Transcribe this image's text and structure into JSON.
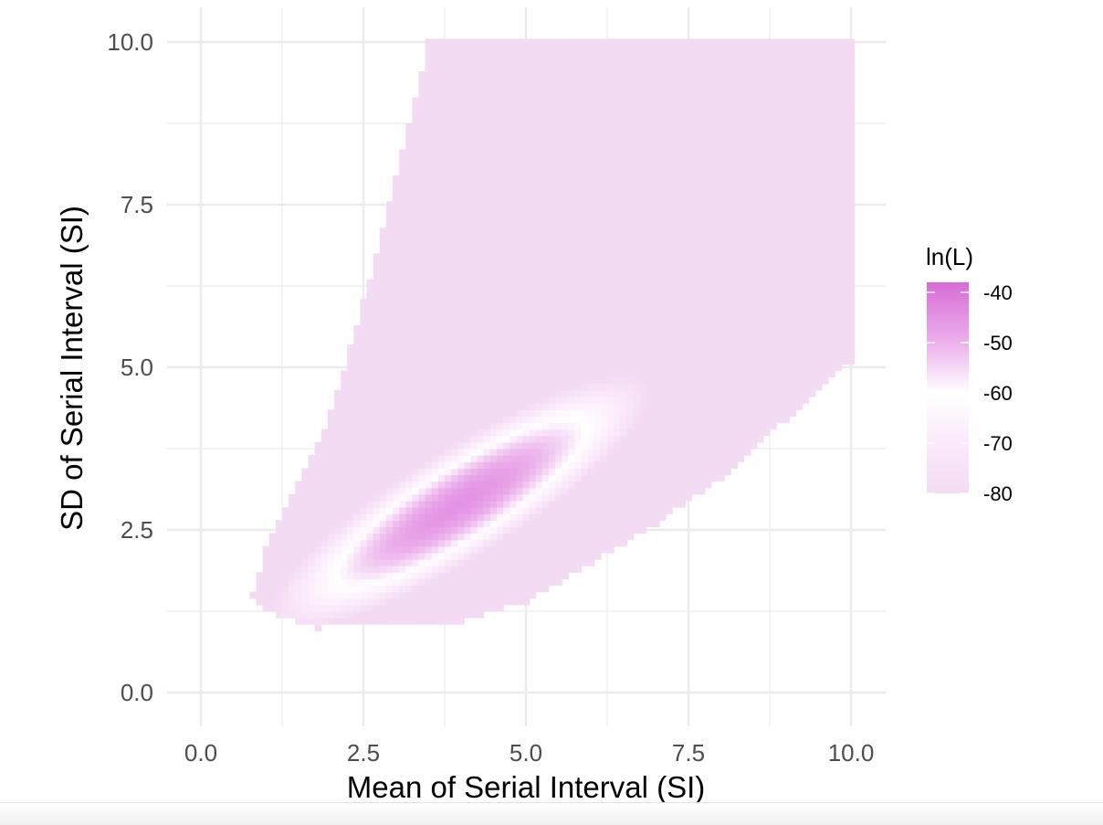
{
  "chart_data": {
    "type": "heatmap",
    "xlabel": "Mean of Serial Interval (SI)",
    "ylabel": "SD of Serial Interval (SI)",
    "xlim": [
      0,
      10
    ],
    "ylim": [
      0,
      10
    ],
    "x_ticks": [
      "0.0",
      "2.5",
      "5.0",
      "7.5",
      "10.0"
    ],
    "y_ticks": [
      "0.0",
      "2.5",
      "5.0",
      "7.5",
      "10.0"
    ],
    "grid": true,
    "legend": {
      "title": "ln(L)",
      "position": "right",
      "labels": [
        "-40",
        "-50",
        "-60",
        "-70",
        "-80"
      ],
      "range": [
        -80,
        -38
      ],
      "color_stops": [
        {
          "value": -80,
          "color": "#f3dcf3"
        },
        {
          "value": -70,
          "color": "#fbeafb"
        },
        {
          "value": -60,
          "color": "#ffffff"
        },
        {
          "value": -50,
          "color": "#ecb0ec"
        },
        {
          "value": -38,
          "color": "#d86bd8"
        }
      ]
    },
    "surface": {
      "grid_step": 0.1,
      "peak": {
        "mean": 4.0,
        "sd": 3.0,
        "lnL": -45
      },
      "boundary_lower_sd": [
        [
          0.8,
          1.5
        ],
        [
          1.0,
          1.25
        ],
        [
          1.5,
          1.1
        ],
        [
          1.8,
          1.0
        ],
        [
          3.0,
          1.05
        ],
        [
          4.0,
          1.1
        ],
        [
          5.0,
          1.4
        ],
        [
          6.0,
          2.0
        ],
        [
          7.0,
          2.6
        ],
        [
          8.0,
          3.3
        ],
        [
          9.0,
          4.2
        ],
        [
          10.0,
          5.1
        ]
      ],
      "boundary_upper_sd": [
        [
          0.8,
          1.5
        ],
        [
          1.0,
          2.2
        ],
        [
          1.5,
          3.2
        ],
        [
          2.0,
          4.3
        ],
        [
          2.5,
          6.0
        ],
        [
          3.0,
          7.9
        ],
        [
          3.5,
          10.0
        ],
        [
          10.0,
          10.0
        ]
      ]
    }
  }
}
